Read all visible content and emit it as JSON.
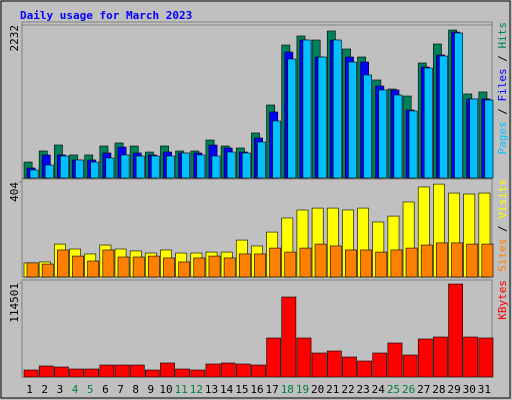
{
  "title": "Daily usage for March 2023",
  "legend_separator": " / ",
  "highlight_color": "#008040",
  "highlight_categories": [
    "4",
    "5",
    "11",
    "12",
    "18",
    "19",
    "25",
    "26"
  ],
  "chart_data": [
    {
      "type": "bar",
      "ylim": [
        0,
        2232
      ],
      "yticks": [
        2232
      ],
      "grid": true,
      "series": [
        {
          "name": "Hits",
          "color": "#00805c",
          "values": [
            233,
            394,
            481,
            336,
            336,
            467,
            511,
            467,
            379,
            467,
            394,
            394,
            554,
            467,
            438,
            657,
            1065,
            1940,
            2072,
            2013,
            2145,
            1882,
            1765,
            1430,
            1298,
            1196,
            1678,
            1955,
            2159,
            1226,
            1255
          ]
        },
        {
          "name": "Files",
          "color": "#0000ff",
          "values": [
            146,
            336,
            336,
            263,
            263,
            365,
            452,
            365,
            336,
            379,
            365,
            365,
            481,
            438,
            379,
            584,
            963,
            1838,
            2013,
            1765,
            2013,
            1765,
            1692,
            1342,
            1284,
            992,
            1619,
            1795,
            2130,
            1153,
            1153
          ]
        },
        {
          "name": "Pages",
          "color": "#00c0ff",
          "values": [
            117,
            190,
            321,
            263,
            233,
            292,
            336,
            321,
            321,
            321,
            365,
            336,
            321,
            379,
            365,
            525,
            832,
            1736,
            2013,
            1765,
            2013,
            1692,
            1503,
            1284,
            1211,
            978,
            1605,
            1780,
            2116,
            1153,
            1138
          ]
        }
      ]
    },
    {
      "type": "bar",
      "ylim": [
        0,
        404
      ],
      "yticks": [
        404
      ],
      "grid": false,
      "series": [
        {
          "name": "Visits",
          "color": "#ffff00",
          "values": [
            60,
            64,
            140,
            119,
            98,
            136,
            119,
            111,
            102,
            115,
            102,
            102,
            106,
            106,
            157,
            132,
            191,
            251,
            285,
            293,
            293,
            285,
            293,
            234,
            259,
            319,
            383,
            395,
            357,
            353,
            357
          ]
        },
        {
          "name": "Sites",
          "color": "#ff8000",
          "values": [
            60,
            55,
            115,
            89,
            68,
            115,
            85,
            85,
            89,
            81,
            64,
            81,
            89,
            81,
            98,
            98,
            123,
            106,
            123,
            140,
            132,
            115,
            115,
            106,
            115,
            123,
            136,
            145,
            145,
            140,
            140
          ]
        }
      ]
    },
    {
      "type": "bar",
      "ylim": [
        0,
        114501
      ],
      "yticks": [
        114501
      ],
      "grid": false,
      "categories": [
        "1",
        "2",
        "3",
        "4",
        "5",
        "6",
        "7",
        "8",
        "9",
        "10",
        "11",
        "12",
        "13",
        "14",
        "15",
        "16",
        "17",
        "18",
        "19",
        "20",
        "21",
        "22",
        "23",
        "24",
        "25",
        "26",
        "27",
        "28",
        "29",
        "30",
        "31"
      ],
      "series": [
        {
          "name": "KBytes",
          "color": "#ff0000",
          "values": [
            8527,
            13398,
            12180,
            9744,
            9744,
            14616,
            14616,
            14616,
            8527,
            17052,
            9744,
            8527,
            15834,
            17052,
            15834,
            14616,
            47502,
            97440,
            47502,
            29232,
            31668,
            24360,
            19488,
            29232,
            41412,
            26796,
            46284,
            48720,
            113274,
            48720,
            47502
          ]
        }
      ]
    }
  ]
}
